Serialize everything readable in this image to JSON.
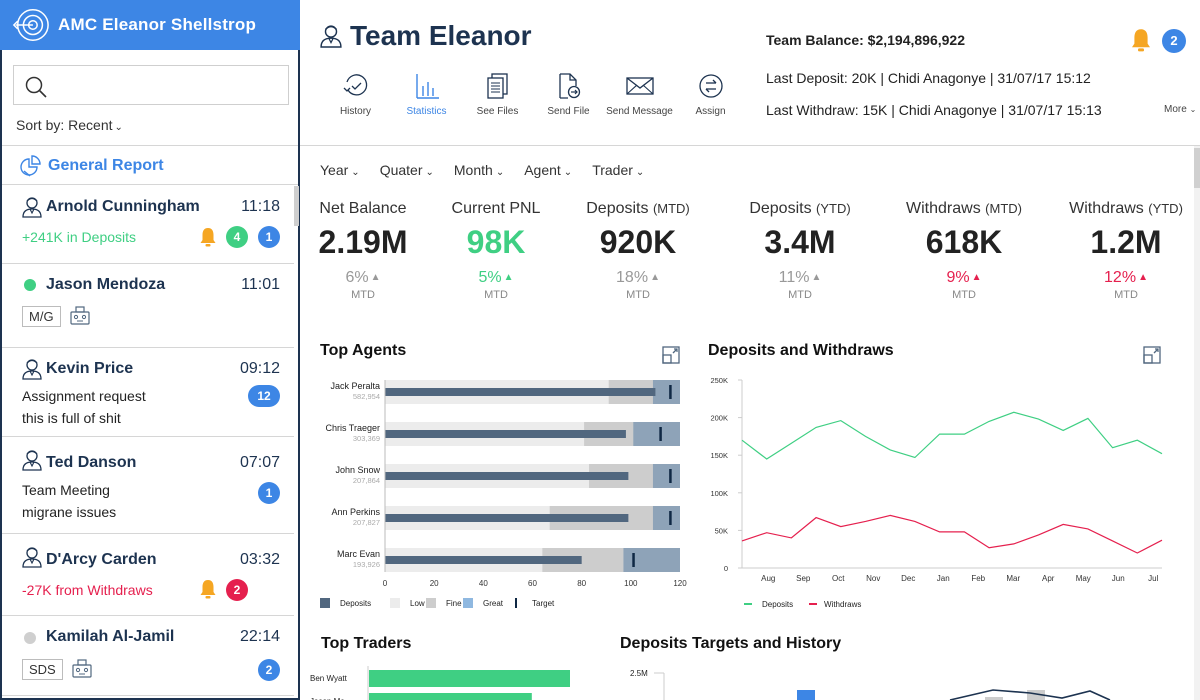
{
  "sidebar": {
    "title": "AMC Eleanor Shellstrop",
    "search": {
      "placeholder": "",
      "value": ""
    },
    "sort_label": "Sort by: Recent",
    "general_report": "General Report",
    "items": [
      {
        "name": "Arnold Cunningham",
        "time": "11:18",
        "sub": "+241K in Deposits",
        "sub_color": "#3fcf83",
        "bell": true,
        "badges": [
          {
            "value": "4",
            "color": "green"
          },
          {
            "value": "1",
            "color": "blue"
          }
        ]
      },
      {
        "name": "Jason Mendoza",
        "time": "11:01",
        "status": "online",
        "tag": "M/G"
      },
      {
        "name": "Kevin Price",
        "time": "09:12",
        "lines": [
          "Assignment request",
          "this is full of shit"
        ],
        "badges": [
          {
            "value": "12",
            "color": "blue"
          }
        ]
      },
      {
        "name": "Ted Danson",
        "time": "07:07",
        "lines": [
          "Team Meeting",
          "migrane issues"
        ],
        "badges": [
          {
            "value": "1",
            "color": "blue"
          }
        ]
      },
      {
        "name": "D'Arcy Carden",
        "time": "03:32",
        "sub": "-27K from Withdraws",
        "sub_color": "#e5204e",
        "bell": true,
        "badges": [
          {
            "value": "2",
            "color": "red"
          }
        ]
      },
      {
        "name": "Kamilah Al-Jamil",
        "time": "22:14",
        "status": "offline",
        "tag": "SDS",
        "badges": [
          {
            "value": "2",
            "color": "blue"
          }
        ]
      }
    ]
  },
  "header": {
    "team_name": "Team Eleanor",
    "toolbar": [
      {
        "label": "History",
        "icon": "history-icon"
      },
      {
        "label": "Statistics",
        "icon": "statistics-icon",
        "active": true
      },
      {
        "label": "See Files",
        "icon": "files-icon"
      },
      {
        "label": "Send File",
        "icon": "send-file-icon"
      },
      {
        "label": "Send Message",
        "icon": "envelope-icon"
      },
      {
        "label": "Assign",
        "icon": "assign-icon"
      }
    ],
    "team_balance": "Team Balance: $2,194,896,922",
    "last_deposit": "Last Deposit: 20K | Chidi Anagonye | 31/07/17  15:12",
    "last_withdraw": "Last Withdraw: 15K | Chidi Anagonye | 31/07/17  15:13",
    "more_label": "More",
    "notification_count": "2"
  },
  "filters": [
    "Year",
    "Quater",
    "Month",
    "Agent",
    "Trader"
  ],
  "kpis": [
    {
      "title": "Net Balance",
      "suffix": "",
      "value": "2.19M",
      "value_color": "#222222",
      "pct": "6%",
      "pct_color": "#999999",
      "sub": "MTD"
    },
    {
      "title": "Current PNL",
      "suffix": "",
      "value": "98K",
      "value_color": "#3fcf83",
      "pct": "5%",
      "pct_color": "#3fcf83",
      "sub": "MTD"
    },
    {
      "title": "Deposits",
      "suffix": "(MTD)",
      "value": "920K",
      "value_color": "#222222",
      "pct": "18%",
      "pct_color": "#999999",
      "sub": "MTD"
    },
    {
      "title": "Deposits",
      "suffix": "(YTD)",
      "value": "3.4M",
      "value_color": "#222222",
      "pct": "11%",
      "pct_color": "#999999",
      "sub": "MTD"
    },
    {
      "title": "Withdraws",
      "suffix": "(MTD)",
      "value": "618K",
      "value_color": "#222222",
      "pct": "9%",
      "pct_color": "#e5204e",
      "sub": "MTD"
    },
    {
      "title": "Withdraws",
      "suffix": "(YTD)",
      "value": "1.2M",
      "value_color": "#222222",
      "pct": "12%",
      "pct_color": "#e5204e",
      "sub": "MTD"
    }
  ],
  "panels": {
    "top_agents": "Top Agents",
    "deposits_withdraws": "Deposits and Withdraws",
    "top_traders": "Top Traders",
    "deposits_targets": "Deposits Targets and History"
  },
  "chart_data": [
    {
      "type": "bar",
      "subtype": "bullet",
      "title": "Top Agents",
      "categories": [
        "Jack Peralta",
        "Chris Traeger",
        "John Snow",
        "Ann Perkins",
        "Marc Evan"
      ],
      "category_sublabels": [
        "582,954",
        "303,369",
        "207,864",
        "207,827",
        "193,926"
      ],
      "series": [
        {
          "name": "Deposits",
          "values": [
            110,
            98,
            99,
            99,
            80
          ]
        },
        {
          "name": "Low",
          "values": [
            91,
            81,
            83,
            67,
            64
          ]
        },
        {
          "name": "Fine",
          "values": [
            109,
            101,
            109,
            109,
            97
          ]
        },
        {
          "name": "Great",
          "values": [
            120,
            120,
            120,
            120,
            120
          ]
        },
        {
          "name": "Target",
          "values": [
            116,
            112,
            116,
            116,
            101
          ]
        }
      ],
      "xlim": [
        0,
        120
      ],
      "xticks": [
        0,
        20,
        40,
        60,
        80,
        100,
        120
      ],
      "legend": [
        "Deposits",
        "Low",
        "Fine",
        "Great",
        "Target"
      ],
      "legend_position": "bottom-left",
      "colors": {
        "Deposits": "#51677f",
        "Low": "#ececec",
        "Fine": "#cdcdcd",
        "Great": "#8ea3b8",
        "Target": "#0f2844",
        "LegendGreat": "#8fb8e0"
      }
    },
    {
      "type": "line",
      "title": "Deposits and Withdraws",
      "x": [
        "",
        "Aug",
        "",
        "Sep",
        "",
        "Oct",
        "",
        "Nov",
        "",
        "Dec",
        "",
        "Jan",
        "",
        "Feb",
        "",
        "Mar",
        "",
        "Apr",
        "",
        "May",
        "",
        "Jun",
        "",
        "Jul",
        ""
      ],
      "xtick_labels": [
        "Aug",
        "Sep",
        "Oct",
        "Nov",
        "Dec",
        "Jan",
        "Feb",
        "Mar",
        "Apr",
        "May",
        "Jun",
        "Jul"
      ],
      "series": [
        {
          "name": "Deposits",
          "color": "#3fcf83",
          "values": [
            170,
            145,
            166,
            187,
            196,
            175,
            157,
            147,
            178,
            178,
            195,
            207,
            198,
            183,
            199,
            160,
            170,
            152
          ]
        },
        {
          "name": "Withdraws",
          "color": "#e5204e",
          "values": [
            36,
            47,
            40,
            67,
            55,
            62,
            70,
            62,
            48,
            48,
            27,
            32,
            44,
            58,
            52,
            36,
            20,
            37
          ]
        }
      ],
      "ylim": [
        0,
        250
      ],
      "yticks": [
        "0",
        "50K",
        "100K",
        "150K",
        "200K",
        "250K"
      ],
      "yunit": "K",
      "legend_position": "bottom-left"
    },
    {
      "type": "bar",
      "orientation": "horizontal",
      "title": "Top Traders",
      "categories": [
        "Ben Wyatt",
        "Jason Me..."
      ],
      "values": [
        100,
        81
      ],
      "color": "#3fcf83"
    },
    {
      "type": "bar",
      "title": "Deposits Targets and History",
      "yticks": [
        "2.5M"
      ]
    }
  ]
}
